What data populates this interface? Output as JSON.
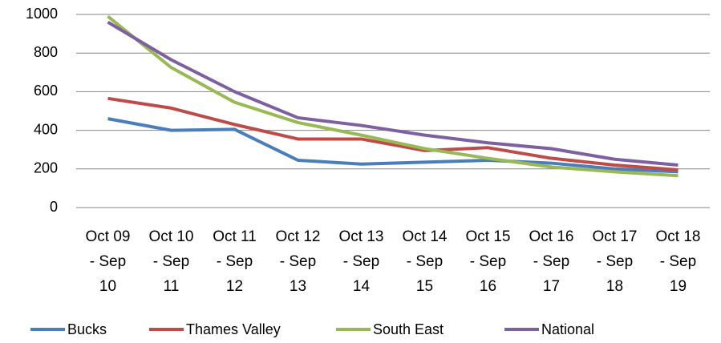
{
  "chart_data": {
    "type": "line",
    "categories": [
      "Oct 09 - Sep 10",
      "Oct 10 - Sep 11",
      "Oct 11 - Sep 12",
      "Oct 12 - Sep 13",
      "Oct 13 - Sep 14",
      "Oct 14 - Sep 15",
      "Oct 15 - Sep 16",
      "Oct 16 - Sep 17",
      "Oct 17 - Sep 18",
      "Oct 18 - Sep 19"
    ],
    "series": [
      {
        "name": "Bucks",
        "color": "#4a7ebb",
        "values": [
          460,
          400,
          405,
          245,
          225,
          235,
          245,
          230,
          200,
          185
        ]
      },
      {
        "name": "Thames Valley",
        "color": "#be4b48",
        "values": [
          565,
          515,
          430,
          355,
          355,
          295,
          310,
          255,
          220,
          195
        ]
      },
      {
        "name": "South East",
        "color": "#98b954",
        "values": [
          990,
          725,
          545,
          440,
          375,
          305,
          255,
          210,
          185,
          165
        ]
      },
      {
        "name": "National",
        "color": "#7d60a0",
        "values": [
          960,
          765,
          600,
          465,
          425,
          375,
          335,
          305,
          250,
          220
        ]
      }
    ],
    "ylim": [
      0,
      1000
    ],
    "yticks": [
      0,
      200,
      400,
      600,
      800,
      1000
    ],
    "grid": true,
    "legend": "bottom"
  }
}
